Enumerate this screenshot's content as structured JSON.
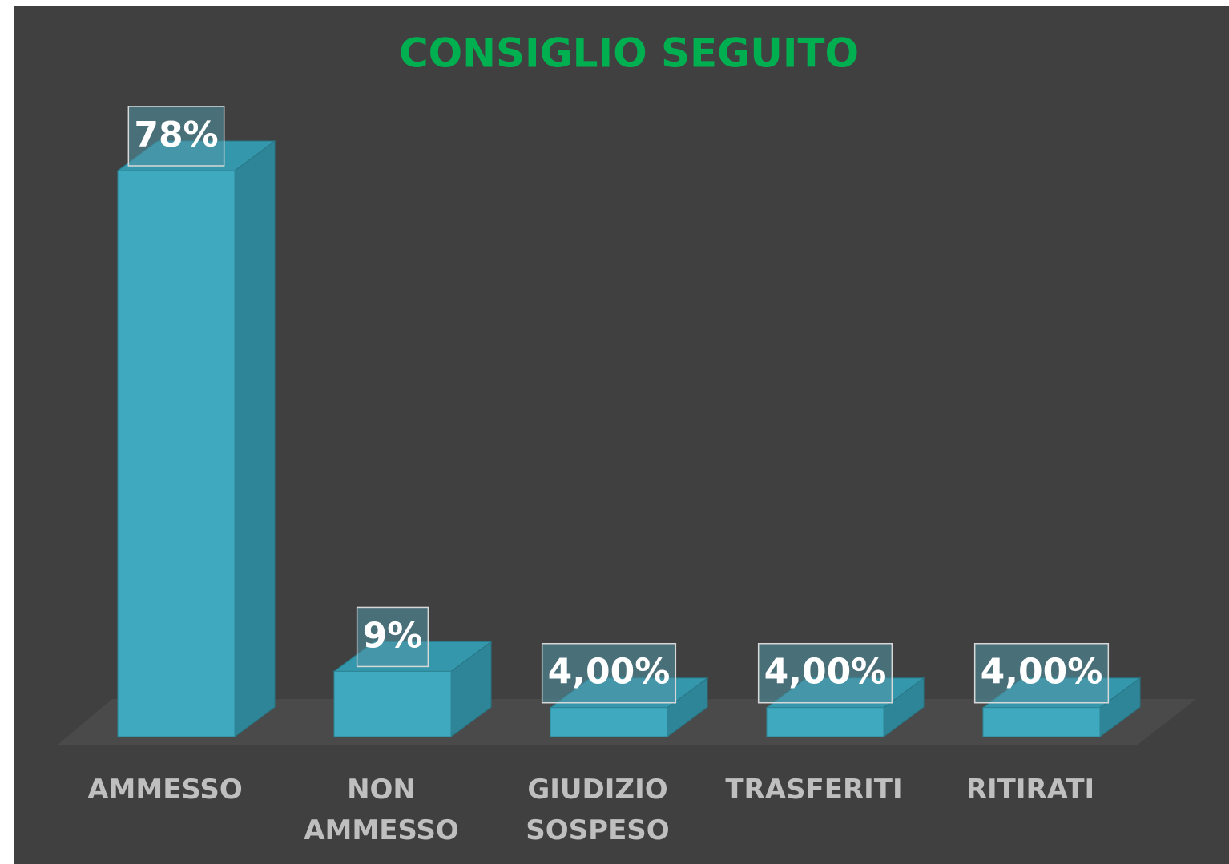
{
  "chart_data": {
    "type": "bar3d",
    "title": "CONSIGLIO SEGUITO",
    "categories": [
      "AMMESSO",
      "NON AMMESSO",
      "GIUDIZIO SOSPESO",
      "TRASFERITI",
      "RITIRATI"
    ],
    "values": [
      78,
      9,
      4,
      4,
      4
    ],
    "value_labels": [
      "78%",
      "9%",
      "4,00%",
      "4,00%",
      "4,00%"
    ],
    "color": "#3fa9bf",
    "title_color": "#00b050"
  }
}
